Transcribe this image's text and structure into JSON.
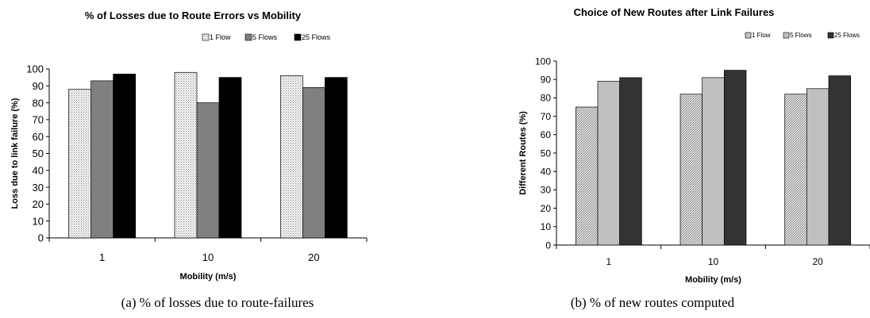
{
  "chart_data": [
    {
      "type": "bar",
      "title": "% of Losses due to Route Errors vs Mobility",
      "xlabel": "Mobility (m/s)",
      "ylabel": "Loss due to link failure (%)",
      "categories": [
        "1",
        "10",
        "20"
      ],
      "series": [
        {
          "name": "1 Flow",
          "values": [
            88,
            98,
            96
          ],
          "color": "#e6e6e6",
          "pattern": "dots"
        },
        {
          "name": "5 Flows",
          "values": [
            93,
            80,
            89
          ],
          "color": "#808080",
          "pattern": "solid"
        },
        {
          "name": "25 Flows",
          "values": [
            97,
            95,
            95
          ],
          "color": "#000000",
          "pattern": "solid"
        }
      ],
      "ylim": [
        0,
        100
      ],
      "yticks": [
        0,
        10,
        20,
        30,
        40,
        50,
        60,
        70,
        80,
        90,
        100
      ],
      "legend": "top",
      "grid": false,
      "caption": "(a) % of losses due to route-failures"
    },
    {
      "type": "bar",
      "title": "Choice of New Routes after Link Failures",
      "xlabel": "Mobility (m/s)",
      "ylabel": "Different Routes (%)",
      "categories": [
        "1",
        "10",
        "20"
      ],
      "series": [
        {
          "name": "1 Flow",
          "values": [
            75,
            82,
            82
          ],
          "color": "#d8d8d8",
          "pattern": "hatch"
        },
        {
          "name": "5 Flows",
          "values": [
            89,
            91,
            85
          ],
          "color": "#c0c0c0",
          "pattern": "solid"
        },
        {
          "name": "25 Flows",
          "values": [
            91,
            95,
            92
          ],
          "color": "#333333",
          "pattern": "solid"
        }
      ],
      "ylim": [
        0,
        100
      ],
      "yticks": [
        0,
        10,
        20,
        30,
        40,
        50,
        60,
        70,
        80,
        90,
        100
      ],
      "legend": "top",
      "grid": false,
      "caption": "(b) % of new routes computed"
    }
  ]
}
